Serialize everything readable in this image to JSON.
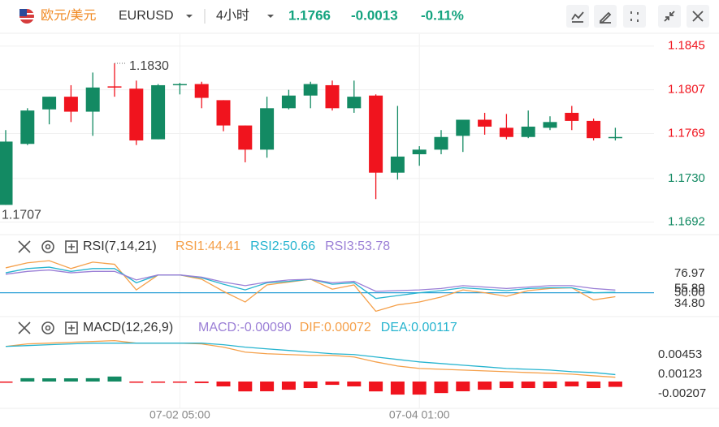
{
  "header": {
    "pair": "欧元/美元",
    "symbol": "EURUSD",
    "interval": "4小时",
    "price": "1.1766",
    "change": "-0.0013",
    "change_pct": "-0.11%"
  },
  "chart_data": [
    {
      "type": "candlestick",
      "up_color": "#138a63",
      "down_color": "#f0141e",
      "categories": [
        null,
        null,
        null,
        null,
        null,
        null,
        null,
        null,
        "07-02 05:00",
        null,
        null,
        null,
        null,
        null,
        null,
        null,
        null,
        null,
        null,
        "07-04 01:00",
        null,
        null,
        null,
        null,
        null,
        null,
        null,
        null,
        null
      ],
      "open": [
        1.1707,
        1.176,
        1.179,
        1.1801,
        1.1788,
        1.181,
        1.1808,
        1.1764,
        1.1811,
        1.1812,
        1.1798,
        1.1776,
        1.1755,
        1.1791,
        1.1802,
        1.1811,
        1.1791,
        1.1802,
        1.1735,
        1.1751,
        1.1755,
        1.1767,
        1.1781,
        1.1774,
        1.1766,
        1.1774,
        1.1787,
        1.178,
        1.1765
      ],
      "high": [
        1.1772,
        1.1791,
        1.1801,
        1.1811,
        1.1822,
        1.183,
        1.1815,
        1.1812,
        1.1813,
        1.1814,
        1.1798,
        1.1776,
        1.1801,
        1.1807,
        1.1814,
        1.1815,
        1.1815,
        1.1803,
        1.1793,
        1.1758,
        1.1772,
        1.1781,
        1.1787,
        1.1786,
        1.1789,
        1.1784,
        1.1793,
        1.1782,
        1.1774
      ],
      "low": [
        1.1707,
        1.1759,
        1.1777,
        1.1779,
        1.1767,
        1.1801,
        1.1759,
        1.1764,
        1.1803,
        1.1791,
        1.1771,
        1.1744,
        1.1748,
        1.179,
        1.1791,
        1.1789,
        1.1787,
        1.1712,
        1.1729,
        1.1741,
        1.1751,
        1.1753,
        1.1768,
        1.1764,
        1.1765,
        1.1772,
        1.1772,
        1.1763,
        1.1763
      ],
      "close": [
        1.1762,
        1.1789,
        1.1801,
        1.1788,
        1.1809,
        1.1809,
        1.1763,
        1.1811,
        1.1812,
        1.18,
        1.1776,
        1.1755,
        1.1791,
        1.1802,
        1.1812,
        1.1791,
        1.1801,
        1.1735,
        1.1749,
        1.1755,
        1.1766,
        1.1781,
        1.1775,
        1.1766,
        1.1775,
        1.1779,
        1.178,
        1.1765,
        1.1766
      ],
      "ylim": [
        1.1684,
        1.1854
      ],
      "yticks": [
        1.1845,
        1.1807,
        1.1769,
        {
          "value": 1.173,
          "label": "1.1730"
        },
        1.1692
      ],
      "high_label": {
        "value": 1.183,
        "label": "1.1830"
      },
      "low_label": {
        "value": 1.1707,
        "label": "1.1707"
      },
      "grid": true
    },
    {
      "type": "line",
      "title": "RSI(7,14,21)",
      "ylim": [
        18.8,
        98.6
      ],
      "yticks": [
        76.97,
        55.89,
        {
          "value": 50,
          "label": "50.00"
        },
        {
          "value": 34.8,
          "label": "34.80"
        }
      ],
      "highlight_tick": 2,
      "series": [
        {
          "name": "RSI1:44.41",
          "color": "#f5a04a",
          "values": [
            85,
            92,
            95,
            84,
            93,
            90,
            54,
            75,
            75,
            69,
            52,
            37,
            61,
            65,
            69,
            55,
            61,
            24,
            33,
            37,
            44,
            54,
            50,
            45,
            53,
            56,
            57,
            40,
            44.41
          ]
        },
        {
          "name": "RSI2:50.66",
          "color": "#26b4cf",
          "values": [
            78,
            84,
            86,
            80,
            84,
            84,
            64,
            75,
            75,
            71,
            62,
            54,
            64,
            66,
            69,
            62,
            64,
            42,
            46,
            50,
            53,
            57,
            55,
            53,
            56,
            57,
            57,
            50,
            50.66
          ]
        },
        {
          "name": "RSI3:53.78",
          "color": "#9b7fd6",
          "values": [
            76,
            80,
            82,
            78,
            80,
            80,
            68,
            75,
            75,
            72,
            65,
            60,
            65,
            68,
            69,
            64,
            66,
            52,
            53,
            54,
            56,
            60,
            58,
            56,
            58,
            60,
            60,
            56,
            53.78
          ]
        }
      ]
    },
    {
      "type": "macd",
      "title": "MACD(12,26,9)",
      "ylim": [
        -0.0041,
        0.0071
      ],
      "yticks": [
        0.00453,
        0.00123,
        -0.00207
      ],
      "histogram": {
        "name": "MACD:-0.00090",
        "up_color": "#138a63",
        "down_color": "#f0141e",
        "values": [
          -0.0002,
          0.00056,
          0.00054,
          0.00054,
          0.00056,
          0.00084,
          -0.0002,
          -0.0002,
          -0.0002,
          -0.00026,
          -0.00082,
          -0.00166,
          -0.00164,
          -0.00138,
          -0.0011,
          -0.00056,
          -0.00082,
          -0.00166,
          -0.0022,
          -0.0022,
          -0.00194,
          -0.00164,
          -0.00138,
          -0.0011,
          -0.0011,
          -0.0011,
          -0.00082,
          -0.0011,
          -0.0009
        ]
      },
      "series": [
        {
          "name": "DIF:0.00072",
          "color": "#f5a04a",
          "values": [
            0.00591,
            0.00633,
            0.00646,
            0.0066,
            0.00674,
            0.00688,
            0.00646,
            0.00646,
            0.00646,
            0.00633,
            0.00578,
            0.00495,
            0.00468,
            0.00454,
            0.0044,
            0.0044,
            0.00413,
            0.0033,
            0.00261,
            0.0022,
            0.00206,
            0.00193,
            0.00179,
            0.00165,
            0.00151,
            0.00138,
            0.00124,
            0.00096,
            0.00072
          ]
        },
        {
          "name": "DEA:0.00117",
          "color": "#26b4cf",
          "values": [
            0.00591,
            0.00605,
            0.00619,
            0.00633,
            0.00646,
            0.00646,
            0.00646,
            0.00646,
            0.00646,
            0.00646,
            0.00619,
            0.00578,
            0.0055,
            0.00523,
            0.00495,
            0.00468,
            0.00454,
            0.00413,
            0.00371,
            0.0033,
            0.00303,
            0.00275,
            0.00248,
            0.0022,
            0.00206,
            0.00193,
            0.00165,
            0.00151,
            0.00117
          ]
        }
      ]
    }
  ]
}
